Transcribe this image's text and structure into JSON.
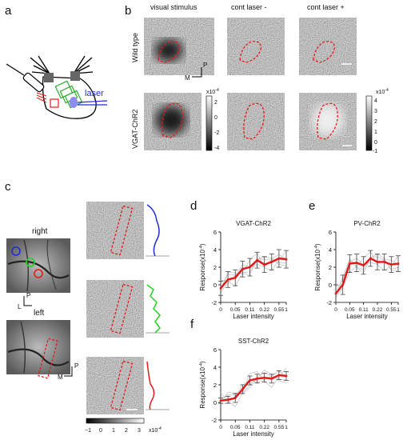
{
  "panels": {
    "a": {
      "label": "a",
      "laser_label": "laser"
    },
    "b": {
      "label": "b",
      "col_titles": [
        "visual stimulus",
        "cont laser -",
        "cont laser +"
      ],
      "row_titles": [
        "Wild type",
        "VGAT-ChR2"
      ],
      "orient_P": "P",
      "orient_M": "M",
      "cb1": {
        "exp": "x10",
        "exp_sup": "-4",
        "ticks": [
          "2",
          "0",
          "-2",
          "-4"
        ]
      },
      "cb2": {
        "exp": "x10",
        "exp_sup": "-4",
        "ticks": [
          "4",
          "3",
          "2",
          "1",
          "0",
          "-1"
        ]
      }
    },
    "c": {
      "label": "c",
      "right_label": "right",
      "left_label": "left",
      "orient_P": "P",
      "orient_L": "L",
      "orient_M": "M",
      "cbar": {
        "ticks": [
          "−1",
          "0",
          "1",
          "2",
          "3"
        ],
        "exp": "x10",
        "exp_sup": "-4"
      },
      "profile_colors": [
        "#1f2bd6",
        "#22d322",
        "#e31b1b"
      ]
    },
    "d": {
      "label": "d"
    },
    "e": {
      "label": "e"
    },
    "f": {
      "label": "f"
    }
  },
  "chart_data": [
    {
      "panel": "d",
      "type": "line",
      "title": "VGAT-ChR2",
      "xlabel": "Laser intensity",
      "ylabel": "Response(x10",
      "ylabel_sup": "-4",
      "ylabel_end": ")",
      "x": [
        0,
        1,
        2,
        3,
        4,
        5,
        6,
        7,
        8,
        9
      ],
      "x_tick_labels": [
        "0",
        "0.05",
        "0.11",
        "0.22",
        "0.55",
        "1"
      ],
      "x_tick_positions": [
        0,
        2,
        4,
        6,
        8,
        9
      ],
      "ylim": [
        -2,
        6
      ],
      "y_ticks": [
        "-2",
        "0",
        "2",
        "4",
        "6"
      ],
      "series": [
        {
          "values": [
            -0.4,
            0.6,
            0.8,
            1.8,
            2.0,
            2.8,
            2.3,
            2.6,
            3.0,
            2.9
          ],
          "errors": [
            0.8,
            0.9,
            0.9,
            0.9,
            1.0,
            0.9,
            0.9,
            0.9,
            1.0,
            1.0
          ]
        }
      ],
      "accent": "#e01818"
    },
    {
      "panel": "e",
      "type": "line",
      "title": "PV-ChR2",
      "xlabel": "Laser intensity",
      "ylabel": "Response(x10",
      "ylabel_sup": "-4",
      "ylabel_end": ")",
      "x": [
        0,
        1,
        2,
        3,
        4,
        5,
        6,
        7,
        8,
        9
      ],
      "x_tick_labels": [
        "0",
        "0.05",
        "0.11",
        "0.22",
        "0.55",
        "1"
      ],
      "x_tick_positions": [
        0,
        2,
        4,
        6,
        8,
        9
      ],
      "ylim": [
        -2,
        6
      ],
      "y_ticks": [
        "-2",
        "0",
        "2",
        "4",
        "6"
      ],
      "series": [
        {
          "values": [
            -1.0,
            0.0,
            2.4,
            2.5,
            2.2,
            3.0,
            2.6,
            2.6,
            2.3,
            2.4
          ],
          "errors": [
            1.0,
            1.1,
            1.0,
            1.0,
            1.0,
            0.9,
            0.9,
            0.9,
            0.9,
            0.9
          ]
        }
      ],
      "accent": "#e01818"
    },
    {
      "panel": "f",
      "type": "line",
      "title": "SST-ChR2",
      "xlabel": "Laser intensity",
      "ylabel": "Response(x10",
      "ylabel_sup": "-4",
      "ylabel_end": ")",
      "x": [
        0,
        1,
        2,
        3,
        4,
        5,
        6,
        7,
        8,
        9
      ],
      "x_tick_labels": [
        "0",
        "0.05",
        "0.11",
        "0.22",
        "0.55",
        "1"
      ],
      "x_tick_positions": [
        0,
        2,
        4,
        6,
        8,
        9
      ],
      "ylim": [
        -2,
        6
      ],
      "y_ticks": [
        "-2",
        "0",
        "2",
        "4",
        "6"
      ],
      "series": [
        {
          "values": [
            0.2,
            0.3,
            0.5,
            1.5,
            2.5,
            2.7,
            2.8,
            2.7,
            3.1,
            3.0
          ],
          "errors": [
            0.3,
            0.4,
            0.5,
            0.5,
            0.5,
            0.5,
            0.5,
            0.5,
            0.5,
            0.5
          ]
        }
      ],
      "accent": "#e01818"
    }
  ]
}
